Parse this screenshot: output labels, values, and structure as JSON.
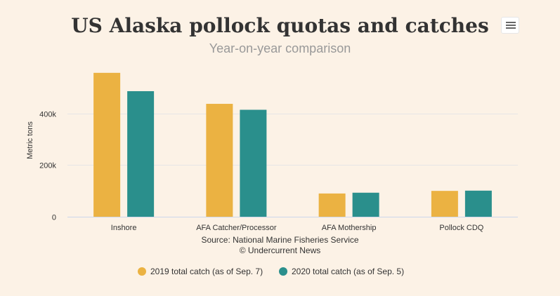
{
  "chart_data": {
    "type": "bar",
    "title": "US Alaska pollock quotas and catches",
    "subtitle": "Year-on-year comparison",
    "ylabel": "Metric tons",
    "xlabel": "",
    "ylim": [
      0,
      600000
    ],
    "yticks": [
      0,
      200000,
      400000
    ],
    "ytick_labels": [
      "0",
      "200k",
      "400k"
    ],
    "categories": [
      "Inshore",
      "AFA Catcher/Processor",
      "AFA Mothership",
      "Pollock CDQ"
    ],
    "series": [
      {
        "name": "2019 total catch (as of Sep. 7)",
        "color": "#ebb242",
        "values": [
          557000,
          437000,
          90000,
          100000
        ]
      },
      {
        "name": "2020 total catch (as of Sep. 5)",
        "color": "#2a8f8c",
        "values": [
          486000,
          414000,
          93000,
          101000
        ]
      }
    ],
    "grid": true,
    "legend_position": "bottom"
  },
  "credits": {
    "source": "Source: National Marine Fisheries Service",
    "copyright": "© Undercurrent News"
  },
  "colors": {
    "background": "#fcf2e6",
    "gridline": "#e6e6e6",
    "axis_line": "#ccd6eb"
  },
  "menu": {
    "icon": "hamburger-menu-icon"
  }
}
